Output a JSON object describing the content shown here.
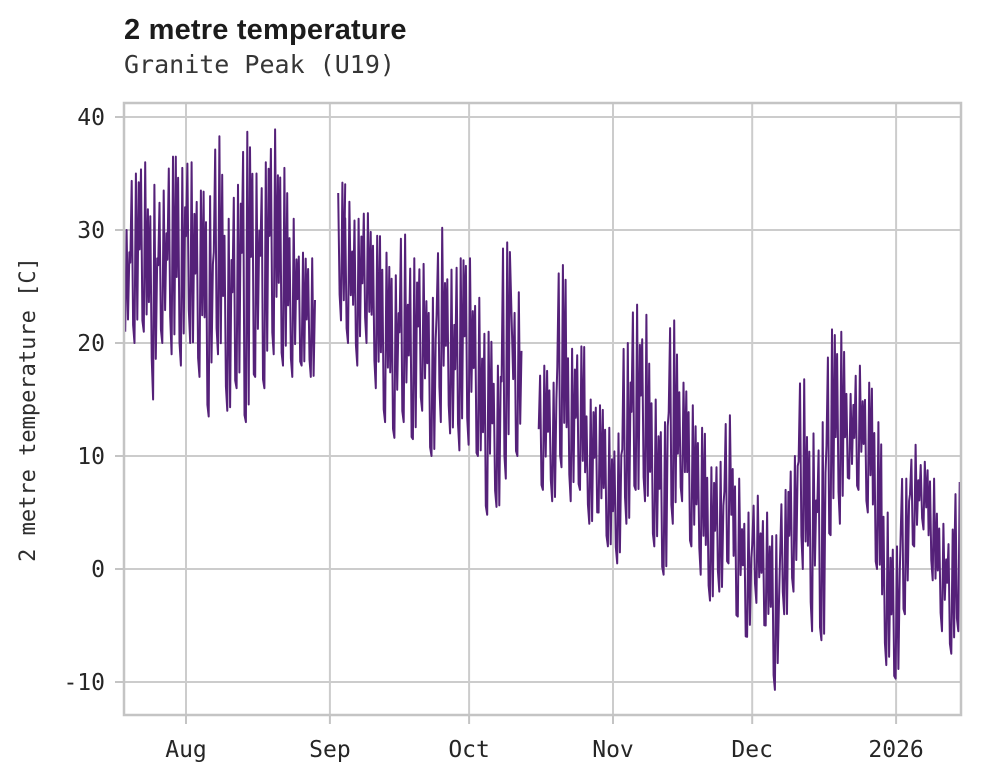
{
  "header": {
    "title": "2 metre temperature",
    "subtitle": "Granite Peak (U19)"
  },
  "colors": {
    "line": "#552179",
    "grid": "#cccccc",
    "spine": "#c4c4c4",
    "title_text": "#1c1c1c",
    "subtitle_text": "#363636",
    "tick_text": "#262626"
  },
  "chart_data": {
    "type": "line",
    "title": "2 metre temperature",
    "subtitle": "Granite Peak (U19)",
    "xlabel": "",
    "ylabel": "2 metre temperature [C]",
    "legend": "none",
    "grid": true,
    "line_color": "#552179",
    "x_axis": {
      "unit": "days_from_Aug_1",
      "range": [
        -13.36,
        166.99
      ],
      "ticks": [
        {
          "label": "Aug",
          "d": 0
        },
        {
          "label": "Sep",
          "d": 31
        },
        {
          "label": "Oct",
          "d": 61
        },
        {
          "label": "Nov",
          "d": 92
        },
        {
          "label": "Dec",
          "d": 122
        },
        {
          "label": "2026",
          "d": 153
        }
      ]
    },
    "y_axis": {
      "ticks": [
        -10,
        0,
        10,
        20,
        30,
        40
      ],
      "range": [
        -12.92,
        41.24
      ]
    },
    "gaps_days": [
      [
        28.2,
        32.8
      ],
      [
        72.5,
        76.0
      ]
    ],
    "envelope_format": "[day_from_Aug_1, est_min_C, est_max_C] per ~2-day window, read from plot",
    "envelope_samples": [
      [
        -13,
        21,
        30
      ],
      [
        -11,
        20,
        35
      ],
      [
        -9,
        21,
        36
      ],
      [
        -7,
        15,
        34
      ],
      [
        -5,
        20,
        33.5
      ],
      [
        -3,
        19,
        36.5
      ],
      [
        -1,
        18,
        35.5
      ],
      [
        1,
        20,
        36
      ],
      [
        3,
        17,
        33.5
      ],
      [
        5,
        13.5,
        33
      ],
      [
        7,
        19,
        38.3
      ],
      [
        9,
        14,
        31
      ],
      [
        11,
        16,
        34
      ],
      [
        13,
        13,
        38.7
      ],
      [
        15,
        17,
        35
      ],
      [
        17,
        16,
        36
      ],
      [
        19,
        19,
        38.9
      ],
      [
        21,
        18,
        35.5
      ],
      [
        23,
        17,
        31
      ],
      [
        25,
        18,
        28
      ],
      [
        27,
        17,
        27.5
      ],
      [
        33.5,
        22,
        34.2
      ],
      [
        35,
        20,
        32.5
      ],
      [
        37,
        18,
        31
      ],
      [
        39,
        20,
        31.5
      ],
      [
        41,
        16,
        29.5
      ],
      [
        43,
        13,
        28
      ],
      [
        45,
        11.6,
        26
      ],
      [
        47,
        13,
        29.6
      ],
      [
        49,
        11.5,
        27.5
      ],
      [
        51,
        14,
        27
      ],
      [
        53,
        10,
        24
      ],
      [
        55,
        13,
        30.2
      ],
      [
        57,
        12,
        26.5
      ],
      [
        59,
        10.5,
        27.5
      ],
      [
        61,
        11,
        27.5
      ],
      [
        63,
        10,
        24
      ],
      [
        65,
        4.8,
        21
      ],
      [
        67,
        5.5,
        18
      ],
      [
        69,
        8,
        28.9
      ],
      [
        71.5,
        10,
        24.5
      ],
      [
        77,
        7,
        18
      ],
      [
        79,
        6,
        16.5
      ],
      [
        81,
        9,
        26.9
      ],
      [
        83,
        6,
        19.5
      ],
      [
        85,
        7,
        19.7
      ],
      [
        87,
        4,
        15
      ],
      [
        89,
        5,
        14.5
      ],
      [
        91,
        2,
        12.5
      ],
      [
        93,
        0.5,
        12
      ],
      [
        95,
        4,
        20
      ],
      [
        97,
        7,
        23.4
      ],
      [
        99,
        6,
        22.5
      ],
      [
        101,
        2,
        15
      ],
      [
        103,
        -0.5,
        13
      ],
      [
        105,
        4,
        22
      ],
      [
        107,
        6,
        16.5
      ],
      [
        109,
        2,
        14.5
      ],
      [
        111,
        -0.5,
        12.5
      ],
      [
        113,
        -2.8,
        9
      ],
      [
        115,
        -2,
        9.5
      ],
      [
        117,
        0.5,
        13.6
      ],
      [
        119,
        -4.2,
        8
      ],
      [
        121,
        -6,
        5
      ],
      [
        123,
        -3,
        6.5
      ],
      [
        125,
        -5,
        5
      ],
      [
        127,
        -10.7,
        3
      ],
      [
        129,
        -4,
        7
      ],
      [
        131,
        -2,
        10
      ],
      [
        133,
        0,
        16.8
      ],
      [
        135,
        -5.5,
        12
      ],
      [
        137,
        -6.3,
        13
      ],
      [
        139,
        3,
        21.2
      ],
      [
        141,
        4,
        21
      ],
      [
        143,
        8,
        15.5
      ],
      [
        145,
        7,
        18
      ],
      [
        147,
        5,
        16.5
      ],
      [
        149,
        0,
        13
      ],
      [
        151,
        -8.5,
        5
      ],
      [
        153,
        -9.7,
        2
      ],
      [
        155,
        -4,
        8
      ],
      [
        157,
        2,
        11
      ],
      [
        159,
        3.5,
        9.5
      ],
      [
        161,
        -1,
        8
      ],
      [
        163,
        -5.5,
        4
      ],
      [
        165,
        -7.5,
        3.5
      ],
      [
        166.5,
        -5.5,
        7.7
      ]
    ]
  }
}
